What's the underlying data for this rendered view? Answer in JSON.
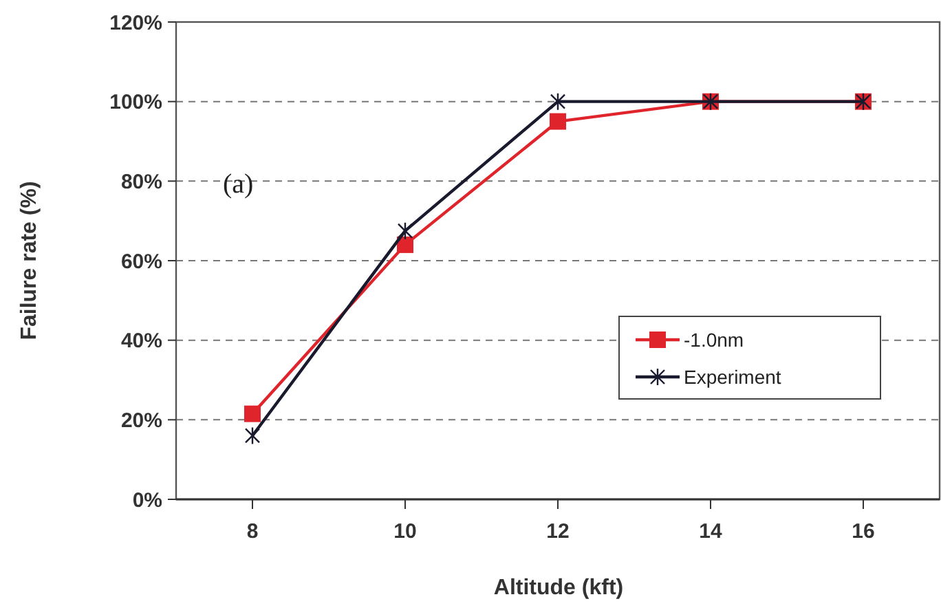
{
  "chart_data": {
    "type": "line",
    "xlabel": "Altitude (kft)",
    "ylabel": "Failure rate (%)",
    "annotations": [
      "(a)"
    ],
    "x": [
      8,
      10,
      12,
      14,
      16
    ],
    "xlim": [
      7,
      17
    ],
    "xticks": [
      8,
      10,
      12,
      14,
      16
    ],
    "ylim": [
      0,
      120
    ],
    "yticks": [
      {
        "value": 0,
        "label": "0%"
      },
      {
        "value": 20,
        "label": "20%"
      },
      {
        "value": 40,
        "label": "40%"
      },
      {
        "value": 60,
        "label": "60%"
      },
      {
        "value": 80,
        "label": "80%"
      },
      {
        "value": 100,
        "label": "100%"
      },
      {
        "value": 120,
        "label": "120%"
      }
    ],
    "grid": "y",
    "legend": "right",
    "line_style": "solid",
    "series": [
      {
        "name": "-1.0nm",
        "color": "#e0242c",
        "marker": "square",
        "values": [
          21.5,
          64,
          95,
          100,
          100
        ]
      },
      {
        "name": "Experiment",
        "color": "#1a1a2e",
        "marker": "cross",
        "values": [
          16,
          67.5,
          100,
          100,
          100
        ]
      }
    ]
  }
}
